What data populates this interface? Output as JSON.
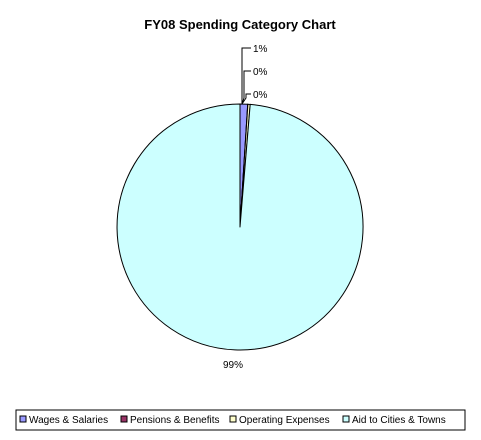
{
  "chart_data": {
    "type": "pie",
    "title": "FY08 Spending Category Chart",
    "slices": [
      {
        "name": "Wages & Salaries",
        "value": 1,
        "label": "1%",
        "color": "#9999ff"
      },
      {
        "name": "Pensions & Benefits",
        "value": 0.02,
        "label": "0%",
        "color": "#993366"
      },
      {
        "name": "Operating Expenses",
        "value": 0.3,
        "label": "0%",
        "color": "#ffffcc"
      },
      {
        "name": "Aid to Cities & Towns",
        "value": 98.68,
        "label": "99%",
        "color": "#ccffff"
      }
    ],
    "legend_position": "bottom"
  }
}
